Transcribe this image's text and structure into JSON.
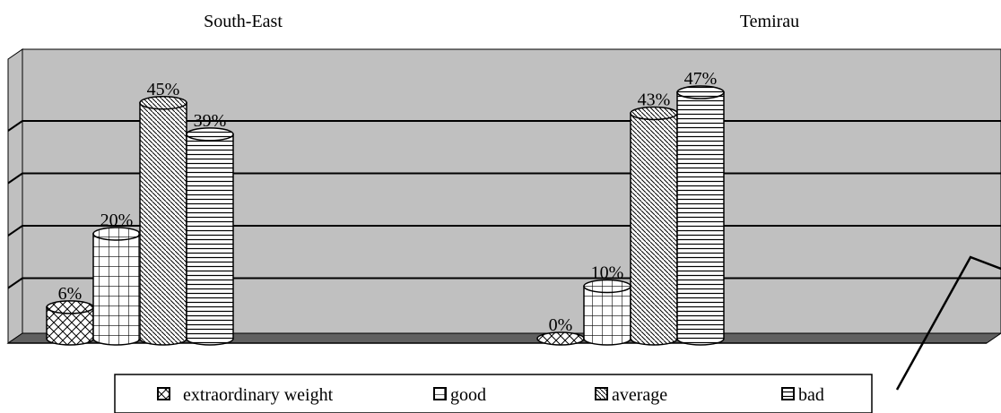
{
  "chart_data": {
    "type": "bar",
    "style": "3d-cylinder",
    "categories": [
      "South-East",
      "Temirau"
    ],
    "series": [
      {
        "name": "extraordinary weight",
        "values": [
          6,
          0
        ],
        "pattern": "cross-hatch"
      },
      {
        "name": "good",
        "values": [
          20,
          10
        ],
        "pattern": "grid"
      },
      {
        "name": "average",
        "values": [
          45,
          43
        ],
        "pattern": "diagonal"
      },
      {
        "name": "bad",
        "values": [
          39,
          47
        ],
        "pattern": "horizontal"
      }
    ],
    "value_suffix": "%",
    "ylim": [
      0,
      50
    ],
    "grid": true,
    "legend": "bottom",
    "colors": {
      "wall": "#c0c0c0",
      "floor": "#606060",
      "bar": "#ffffff",
      "line": "#000000",
      "watermark": "#000000"
    }
  }
}
